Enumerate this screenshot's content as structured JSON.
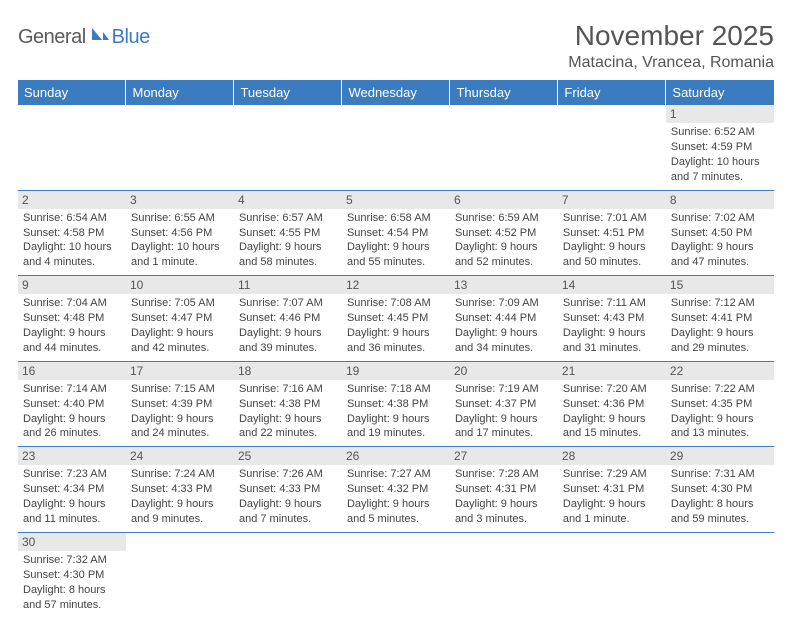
{
  "brand": {
    "part1": "General",
    "part2": "Blue",
    "logo_color": "#3b7bbf",
    "text_gray": "#5a5a5a"
  },
  "title": "November 2025",
  "location": "Matacina, Vrancea, Romania",
  "colors": {
    "header_bg": "#3b7bbf",
    "daynum_bg": "#e8e8e8",
    "border": "#3b7bbf",
    "text": "#444"
  },
  "weekdays": [
    "Sunday",
    "Monday",
    "Tuesday",
    "Wednesday",
    "Thursday",
    "Friday",
    "Saturday"
  ],
  "weeks": [
    [
      null,
      null,
      null,
      null,
      null,
      null,
      {
        "n": "1",
        "sr": "Sunrise: 6:52 AM",
        "ss": "Sunset: 4:59 PM",
        "dl1": "Daylight: 10 hours",
        "dl2": "and 7 minutes."
      }
    ],
    [
      {
        "n": "2",
        "sr": "Sunrise: 6:54 AM",
        "ss": "Sunset: 4:58 PM",
        "dl1": "Daylight: 10 hours",
        "dl2": "and 4 minutes."
      },
      {
        "n": "3",
        "sr": "Sunrise: 6:55 AM",
        "ss": "Sunset: 4:56 PM",
        "dl1": "Daylight: 10 hours",
        "dl2": "and 1 minute."
      },
      {
        "n": "4",
        "sr": "Sunrise: 6:57 AM",
        "ss": "Sunset: 4:55 PM",
        "dl1": "Daylight: 9 hours",
        "dl2": "and 58 minutes."
      },
      {
        "n": "5",
        "sr": "Sunrise: 6:58 AM",
        "ss": "Sunset: 4:54 PM",
        "dl1": "Daylight: 9 hours",
        "dl2": "and 55 minutes."
      },
      {
        "n": "6",
        "sr": "Sunrise: 6:59 AM",
        "ss": "Sunset: 4:52 PM",
        "dl1": "Daylight: 9 hours",
        "dl2": "and 52 minutes."
      },
      {
        "n": "7",
        "sr": "Sunrise: 7:01 AM",
        "ss": "Sunset: 4:51 PM",
        "dl1": "Daylight: 9 hours",
        "dl2": "and 50 minutes."
      },
      {
        "n": "8",
        "sr": "Sunrise: 7:02 AM",
        "ss": "Sunset: 4:50 PM",
        "dl1": "Daylight: 9 hours",
        "dl2": "and 47 minutes."
      }
    ],
    [
      {
        "n": "9",
        "sr": "Sunrise: 7:04 AM",
        "ss": "Sunset: 4:48 PM",
        "dl1": "Daylight: 9 hours",
        "dl2": "and 44 minutes."
      },
      {
        "n": "10",
        "sr": "Sunrise: 7:05 AM",
        "ss": "Sunset: 4:47 PM",
        "dl1": "Daylight: 9 hours",
        "dl2": "and 42 minutes."
      },
      {
        "n": "11",
        "sr": "Sunrise: 7:07 AM",
        "ss": "Sunset: 4:46 PM",
        "dl1": "Daylight: 9 hours",
        "dl2": "and 39 minutes."
      },
      {
        "n": "12",
        "sr": "Sunrise: 7:08 AM",
        "ss": "Sunset: 4:45 PM",
        "dl1": "Daylight: 9 hours",
        "dl2": "and 36 minutes."
      },
      {
        "n": "13",
        "sr": "Sunrise: 7:09 AM",
        "ss": "Sunset: 4:44 PM",
        "dl1": "Daylight: 9 hours",
        "dl2": "and 34 minutes."
      },
      {
        "n": "14",
        "sr": "Sunrise: 7:11 AM",
        "ss": "Sunset: 4:43 PM",
        "dl1": "Daylight: 9 hours",
        "dl2": "and 31 minutes."
      },
      {
        "n": "15",
        "sr": "Sunrise: 7:12 AM",
        "ss": "Sunset: 4:41 PM",
        "dl1": "Daylight: 9 hours",
        "dl2": "and 29 minutes."
      }
    ],
    [
      {
        "n": "16",
        "sr": "Sunrise: 7:14 AM",
        "ss": "Sunset: 4:40 PM",
        "dl1": "Daylight: 9 hours",
        "dl2": "and 26 minutes."
      },
      {
        "n": "17",
        "sr": "Sunrise: 7:15 AM",
        "ss": "Sunset: 4:39 PM",
        "dl1": "Daylight: 9 hours",
        "dl2": "and 24 minutes."
      },
      {
        "n": "18",
        "sr": "Sunrise: 7:16 AM",
        "ss": "Sunset: 4:38 PM",
        "dl1": "Daylight: 9 hours",
        "dl2": "and 22 minutes."
      },
      {
        "n": "19",
        "sr": "Sunrise: 7:18 AM",
        "ss": "Sunset: 4:38 PM",
        "dl1": "Daylight: 9 hours",
        "dl2": "and 19 minutes."
      },
      {
        "n": "20",
        "sr": "Sunrise: 7:19 AM",
        "ss": "Sunset: 4:37 PM",
        "dl1": "Daylight: 9 hours",
        "dl2": "and 17 minutes."
      },
      {
        "n": "21",
        "sr": "Sunrise: 7:20 AM",
        "ss": "Sunset: 4:36 PM",
        "dl1": "Daylight: 9 hours",
        "dl2": "and 15 minutes."
      },
      {
        "n": "22",
        "sr": "Sunrise: 7:22 AM",
        "ss": "Sunset: 4:35 PM",
        "dl1": "Daylight: 9 hours",
        "dl2": "and 13 minutes."
      }
    ],
    [
      {
        "n": "23",
        "sr": "Sunrise: 7:23 AM",
        "ss": "Sunset: 4:34 PM",
        "dl1": "Daylight: 9 hours",
        "dl2": "and 11 minutes."
      },
      {
        "n": "24",
        "sr": "Sunrise: 7:24 AM",
        "ss": "Sunset: 4:33 PM",
        "dl1": "Daylight: 9 hours",
        "dl2": "and 9 minutes."
      },
      {
        "n": "25",
        "sr": "Sunrise: 7:26 AM",
        "ss": "Sunset: 4:33 PM",
        "dl1": "Daylight: 9 hours",
        "dl2": "and 7 minutes."
      },
      {
        "n": "26",
        "sr": "Sunrise: 7:27 AM",
        "ss": "Sunset: 4:32 PM",
        "dl1": "Daylight: 9 hours",
        "dl2": "and 5 minutes."
      },
      {
        "n": "27",
        "sr": "Sunrise: 7:28 AM",
        "ss": "Sunset: 4:31 PM",
        "dl1": "Daylight: 9 hours",
        "dl2": "and 3 minutes."
      },
      {
        "n": "28",
        "sr": "Sunrise: 7:29 AM",
        "ss": "Sunset: 4:31 PM",
        "dl1": "Daylight: 9 hours",
        "dl2": "and 1 minute."
      },
      {
        "n": "29",
        "sr": "Sunrise: 7:31 AM",
        "ss": "Sunset: 4:30 PM",
        "dl1": "Daylight: 8 hours",
        "dl2": "and 59 minutes."
      }
    ],
    [
      {
        "n": "30",
        "sr": "Sunrise: 7:32 AM",
        "ss": "Sunset: 4:30 PM",
        "dl1": "Daylight: 8 hours",
        "dl2": "and 57 minutes."
      },
      null,
      null,
      null,
      null,
      null,
      null
    ]
  ]
}
